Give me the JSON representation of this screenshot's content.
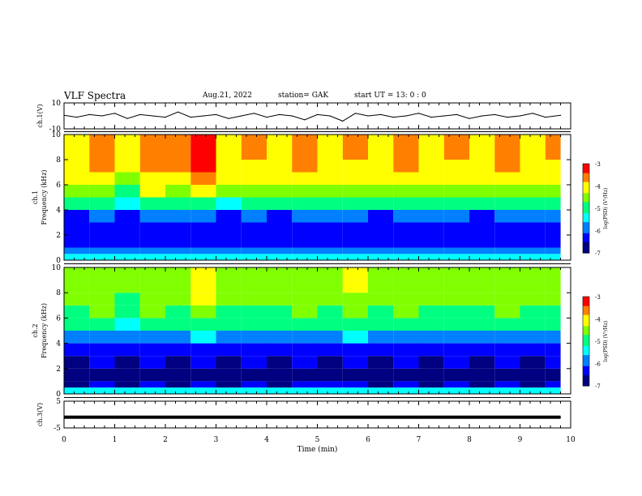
{
  "header": {
    "title": "VLF Spectra",
    "date": "Aug.21, 2022",
    "station": "station= GAK",
    "start": "start  UT =   13: 0  : 0"
  },
  "colors": {
    "colormap": [
      "#000080",
      "#0000ff",
      "#0080ff",
      "#00ffff",
      "#00ff80",
      "#80ff00",
      "#ffff00",
      "#ff8000",
      "#ff0000",
      "#ffffff"
    ]
  },
  "chart_data": [
    {
      "id": "ch1-waveform",
      "type": "line",
      "ylabel": "ch.1(V)",
      "ylim": [
        -10,
        10
      ],
      "yticks": [
        "10",
        "-10"
      ],
      "x": [
        0,
        0.25,
        0.5,
        0.75,
        1,
        1.25,
        1.5,
        1.75,
        2,
        2.25,
        2.5,
        2.75,
        3,
        3.25,
        3.5,
        3.75,
        4,
        4.25,
        4.5,
        4.75,
        5,
        5.25,
        5.5,
        5.75,
        6,
        6.25,
        6.5,
        6.75,
        7,
        7.25,
        7.5,
        7.75,
        8,
        8.25,
        8.5,
        8.75,
        9,
        9.25,
        9.5,
        9.8
      ],
      "values": [
        0.5,
        -1,
        1,
        0,
        2,
        -2,
        1,
        0,
        -1,
        3,
        -1,
        0,
        1,
        -2,
        0,
        2,
        -1,
        1,
        0,
        -3,
        1,
        0,
        -4,
        2,
        0,
        1,
        -1,
        0,
        2,
        -1,
        0,
        1,
        -2,
        0,
        1,
        -1,
        0,
        2,
        -1,
        0.5
      ]
    },
    {
      "id": "ch1-spectrogram",
      "type": "heatmap",
      "ylabel": "ch.1\nFrequency (kHz)",
      "ylim": [
        0,
        10
      ],
      "yticks": [
        "0",
        "2",
        "4",
        "6",
        "8",
        "10"
      ],
      "colorbar": {
        "label": "log(PSD) (V²/Hz)",
        "range": [
          -7,
          -3
        ],
        "ticks": [
          "-3",
          "-4",
          "-5",
          "-6",
          "-7"
        ]
      },
      "x": [
        0,
        0.5,
        1,
        1.5,
        2,
        2.5,
        3,
        3.5,
        4,
        4.5,
        5,
        5.5,
        6,
        6.5,
        7,
        7.5,
        8,
        8.5,
        9,
        9.5
      ],
      "y": [
        0.25,
        0.75,
        1.5,
        2.5,
        3.5,
        4.5,
        5.5,
        6.5,
        7.5,
        8.5,
        9.5
      ],
      "z": [
        [
          -5.5,
          -5.5,
          -5.5,
          -5.5,
          -5.5,
          -5.5,
          -5.5,
          -5.5,
          -5.5,
          -5.5,
          -5.5,
          -5.5,
          -5.5,
          -5.5,
          -5.5,
          -5.5,
          -5.5,
          -5.5,
          -5.5,
          -5.5
        ],
        [
          -5.8,
          -5.8,
          -5.8,
          -5.8,
          -5.8,
          -5.8,
          -5.8,
          -5.8,
          -5.8,
          -5.8,
          -5.8,
          -5.8,
          -5.8,
          -5.8,
          -5.8,
          -5.8,
          -5.8,
          -5.8,
          -5.8,
          -5.8
        ],
        [
          -6.5,
          -6.4,
          -6.5,
          -6.4,
          -6.5,
          -6.3,
          -6.5,
          -6.4,
          -6.5,
          -6.4,
          -6.5,
          -6.4,
          -6.5,
          -6.4,
          -6.5,
          -6.4,
          -6.5,
          -6.4,
          -6.5,
          -6.4
        ],
        [
          -6.4,
          -6.3,
          -6.5,
          -6.3,
          -6.4,
          -6.2,
          -6.4,
          -6.3,
          -6.4,
          -6.3,
          -6.4,
          -6.3,
          -6.4,
          -6.3,
          -6.4,
          -6.3,
          -6.4,
          -6.3,
          -6.4,
          -6.3
        ],
        [
          -6.2,
          -6.0,
          -6.3,
          -6.0,
          -6.1,
          -5.9,
          -6.2,
          -6.0,
          -6.2,
          -6.0,
          -6.1,
          -6.0,
          -6.2,
          -6.0,
          -6.1,
          -6.0,
          -6.2,
          -6.0,
          -6.1,
          -6.0
        ],
        [
          -5.2,
          -5.0,
          -5.4,
          -5.0,
          -5.1,
          -4.8,
          -5.3,
          -5.1,
          -5.2,
          -5.0,
          -5.2,
          -5.1,
          -5.2,
          -5.0,
          -5.2,
          -5.1,
          -5.2,
          -5.0,
          -5.2,
          -5.1
        ],
        [
          -4.6,
          -4.4,
          -4.8,
          -4.3,
          -4.4,
          -4.0,
          -4.6,
          -4.5,
          -4.6,
          -4.4,
          -4.6,
          -4.5,
          -4.6,
          -4.4,
          -4.6,
          -4.5,
          -4.6,
          -4.4,
          -4.6,
          -4.5
        ],
        [
          -4.2,
          -4.0,
          -4.4,
          -3.9,
          -4.0,
          -3.6,
          -4.2,
          -4.1,
          -4.2,
          -4.0,
          -4.2,
          -4.1,
          -4.2,
          -4.0,
          -4.2,
          -4.1,
          -4.2,
          -4.0,
          -4.2,
          -4.1
        ],
        [
          -4.0,
          -3.8,
          -4.2,
          -3.7,
          -3.8,
          -3.4,
          -4.0,
          -3.9,
          -4.0,
          -3.8,
          -4.0,
          -3.9,
          -4.0,
          -3.8,
          -4.0,
          -3.9,
          -4.0,
          -3.8,
          -4.0,
          -3.9
        ],
        [
          -3.9,
          -3.7,
          -4.1,
          -3.6,
          -3.7,
          -3.3,
          -3.9,
          -3.8,
          -3.9,
          -3.7,
          -3.9,
          -3.8,
          -3.9,
          -3.7,
          -3.9,
          -3.8,
          -3.9,
          -3.7,
          -3.9,
          -3.8
        ],
        [
          -3.9,
          -3.7,
          -4.1,
          -3.6,
          -3.7,
          -3.3,
          -3.9,
          -3.8,
          -3.9,
          -3.7,
          -3.9,
          -3.8,
          -3.9,
          -3.7,
          -3.9,
          -3.8,
          -3.9,
          -3.7,
          -3.9,
          -3.8
        ]
      ]
    },
    {
      "id": "ch2-spectrogram",
      "type": "heatmap",
      "ylabel": "ch.2\nFrequency (kHz)",
      "ylim": [
        0,
        10
      ],
      "yticks": [
        "0",
        "2",
        "4",
        "6",
        "8",
        "10"
      ],
      "colorbar": {
        "label": "log(PSD) (V²/Hz)",
        "range": [
          -7,
          -3
        ],
        "ticks": [
          "-3",
          "-4",
          "-5",
          "-6",
          "-7"
        ]
      },
      "x": [
        0,
        0.5,
        1,
        1.5,
        2,
        2.5,
        3,
        3.5,
        4,
        4.5,
        5,
        5.5,
        6,
        6.5,
        7,
        7.5,
        8,
        8.5,
        9,
        9.5
      ],
      "y": [
        0.25,
        0.75,
        1.5,
        2.5,
        3.5,
        4.5,
        5.5,
        6.5,
        7.5,
        8.5,
        9.5
      ],
      "z": [
        [
          -5.6,
          -5.6,
          -5.6,
          -5.6,
          -5.6,
          -5.6,
          -5.6,
          -5.6,
          -5.6,
          -5.6,
          -5.6,
          -5.6,
          -5.6,
          -5.6,
          -5.6,
          -5.6,
          -5.6,
          -5.6,
          -5.6,
          -5.6
        ],
        [
          -6.6,
          -6.5,
          -6.6,
          -6.5,
          -6.6,
          -6.5,
          -6.6,
          -6.5,
          -6.6,
          -6.5,
          -6.4,
          -6.5,
          -6.6,
          -6.5,
          -6.6,
          -6.5,
          -6.6,
          -6.5,
          -6.6,
          -6.5
        ],
        [
          -6.7,
          -6.6,
          -6.7,
          -6.6,
          -6.7,
          -6.6,
          -6.7,
          -6.6,
          -6.7,
          -6.6,
          -6.6,
          -6.6,
          -6.7,
          -6.6,
          -6.7,
          -6.6,
          -6.7,
          -6.6,
          -6.7,
          -6.6
        ],
        [
          -6.6,
          -6.5,
          -6.6,
          -6.5,
          -6.6,
          -6.5,
          -6.6,
          -6.5,
          -6.6,
          -6.5,
          -6.6,
          -6.5,
          -6.6,
          -6.5,
          -6.6,
          -6.5,
          -6.6,
          -6.5,
          -6.6,
          -6.5
        ],
        [
          -6.4,
          -6.3,
          -6.5,
          -6.3,
          -6.4,
          -6.2,
          -6.4,
          -6.3,
          -6.4,
          -6.3,
          -6.4,
          -6.3,
          -6.4,
          -6.3,
          -6.4,
          -6.3,
          -6.4,
          -6.3,
          -6.4,
          -6.3
        ],
        [
          -5.9,
          -5.7,
          -6.0,
          -5.7,
          -5.8,
          -5.5,
          -5.9,
          -5.8,
          -5.9,
          -5.7,
          -5.9,
          -5.6,
          -5.9,
          -5.7,
          -5.9,
          -5.8,
          -5.9,
          -5.7,
          -5.9,
          -5.8
        ],
        [
          -5.2,
          -5.0,
          -5.3,
          -5.0,
          -5.1,
          -4.8,
          -5.2,
          -5.1,
          -5.2,
          -5.0,
          -5.2,
          -4.9,
          -5.2,
          -5.0,
          -5.2,
          -5.1,
          -5.2,
          -5.0,
          -5.2,
          -5.1
        ],
        [
          -4.9,
          -4.7,
          -5.0,
          -4.7,
          -4.8,
          -4.5,
          -4.9,
          -4.8,
          -4.9,
          -4.7,
          -4.9,
          -4.6,
          -4.9,
          -4.7,
          -4.9,
          -4.8,
          -4.9,
          -4.7,
          -4.9,
          -4.8
        ],
        [
          -4.7,
          -4.5,
          -4.8,
          -4.5,
          -4.6,
          -4.3,
          -4.7,
          -4.6,
          -4.7,
          -4.5,
          -4.7,
          -4.4,
          -4.7,
          -4.5,
          -4.7,
          -4.6,
          -4.7,
          -4.5,
          -4.7,
          -4.6
        ],
        [
          -4.6,
          -4.4,
          -4.7,
          -4.4,
          -4.5,
          -4.2,
          -4.6,
          -4.5,
          -4.6,
          -4.4,
          -4.6,
          -4.3,
          -4.6,
          -4.4,
          -4.6,
          -4.5,
          -4.6,
          -4.4,
          -4.6,
          -4.5
        ],
        [
          -4.6,
          -4.4,
          -4.7,
          -4.4,
          -4.5,
          -4.2,
          -4.6,
          -4.5,
          -4.6,
          -4.4,
          -4.6,
          -4.3,
          -4.6,
          -4.4,
          -4.6,
          -4.5,
          -4.6,
          -4.4,
          -4.6,
          -4.5
        ]
      ]
    },
    {
      "id": "ch3-waveform",
      "type": "line",
      "ylabel": "ch.3(V)",
      "ylim": [
        -5,
        5
      ],
      "yticks": [
        "5",
        "-5"
      ],
      "x": [
        0,
        9.8
      ],
      "values": [
        -1,
        -1
      ]
    }
  ],
  "xaxis": {
    "label": "Time (min)",
    "range": [
      0,
      10
    ],
    "ticks": [
      "0",
      "1",
      "2",
      "3",
      "4",
      "5",
      "6",
      "7",
      "8",
      "9",
      "10"
    ]
  }
}
